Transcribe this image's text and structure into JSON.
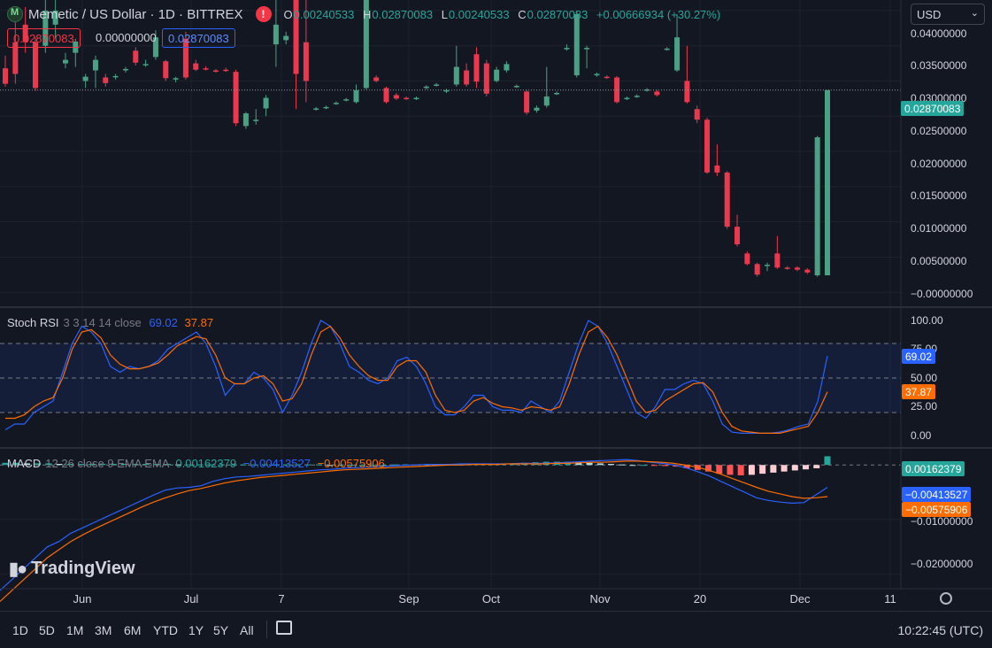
{
  "header": {
    "symbol": "Memetic / US Dollar · 1D · BITTREX",
    "alert_glyph": "!",
    "ohlc": [
      {
        "key": "O",
        "value": "0.00240533"
      },
      {
        "key": "H",
        "value": "0.02870083"
      },
      {
        "key": "L",
        "value": "0.00240533"
      },
      {
        "key": "C",
        "value": "0.02870083"
      }
    ],
    "change": "+0.00666934 (+30.27%)",
    "sell_price": "0.02870083",
    "spread": "0.00000000",
    "buy_price": "0.02870083",
    "currency": "USD"
  },
  "colors": {
    "up": "#26a69a",
    "up_candle": "#4aa082",
    "down": "#f23645",
    "down_candle": "#e8394f",
    "k_line": "#2962ff",
    "d_line": "#ff6d00",
    "macd_line": "#2962ff",
    "signal_line": "#ff6d00"
  },
  "price_axis": {
    "labels": [
      "0.04000000",
      "0.03500000",
      "0.03000000",
      "0.02500000",
      "0.02000000",
      "0.01500000",
      "0.01000000",
      "0.00500000",
      "−0.00000000"
    ],
    "last_price": "0.02870083"
  },
  "stoch": {
    "name": "Stoch RSI",
    "params": "3 3 14 14 close",
    "k_value": "69.02",
    "d_value": "37.87",
    "labels": [
      "100.00",
      "75.00",
      "50.00",
      "25.00",
      "0.00"
    ]
  },
  "macd": {
    "name": "MACD",
    "params": "12 26 close 9 EMA EMA",
    "hist_value": "0.00162379",
    "macd_value": "−0.00413527",
    "signal_value": "−0.00575906",
    "labels": [
      "−0.01000000",
      "−0.02000000"
    ]
  },
  "time_axis": {
    "labels": [
      "Jun",
      "Jul",
      "7",
      "Sep",
      "Oct",
      "Nov",
      "20",
      "Dec",
      "11"
    ]
  },
  "ranges": [
    "1D",
    "5D",
    "1M",
    "3M",
    "6M",
    "YTD",
    "1Y",
    "5Y",
    "All"
  ],
  "clock": "10:22:45 (UTC)",
  "brand": "TradingView",
  "chart_data": [
    {
      "type": "candlestick",
      "title": "Memetic / US Dollar · 1D · BITTREX",
      "ylim": [
        -0.002,
        0.0415
      ],
      "candles": [
        {
          "o": 0.0318,
          "c": 0.0296,
          "h": 0.0336,
          "l": 0.0292
        },
        {
          "o": 0.0355,
          "c": 0.031,
          "h": 0.039,
          "l": 0.0296
        },
        {
          "o": 0.038,
          "c": 0.0355,
          "h": 0.0405,
          "l": 0.034
        },
        {
          "o": 0.0355,
          "c": 0.029,
          "h": 0.0362,
          "l": 0.0286
        },
        {
          "o": 0.035,
          "c": 0.04,
          "h": 0.0415,
          "l": 0.034
        },
        {
          "o": 0.038,
          "c": 0.04,
          "h": 0.0415,
          "l": 0.036
        },
        {
          "o": 0.0325,
          "c": 0.033,
          "h": 0.034,
          "l": 0.0318
        },
        {
          "o": 0.034,
          "c": 0.0356,
          "h": 0.036,
          "l": 0.032
        },
        {
          "o": 0.03,
          "c": 0.0306,
          "h": 0.031,
          "l": 0.029
        },
        {
          "o": 0.0315,
          "c": 0.033,
          "h": 0.0336,
          "l": 0.029
        },
        {
          "o": 0.0305,
          "c": 0.0297,
          "h": 0.031,
          "l": 0.0292
        },
        {
          "o": 0.0306,
          "c": 0.0307,
          "h": 0.031,
          "l": 0.0302
        },
        {
          "o": 0.0315,
          "c": 0.0317,
          "h": 0.032,
          "l": 0.0312
        },
        {
          "o": 0.0343,
          "c": 0.0326,
          "h": 0.0348,
          "l": 0.0322
        },
        {
          "o": 0.0323,
          "c": 0.0324,
          "h": 0.033,
          "l": 0.032
        },
        {
          "o": 0.0334,
          "c": 0.0362,
          "h": 0.0372,
          "l": 0.033
        },
        {
          "o": 0.0328,
          "c": 0.0304,
          "h": 0.033,
          "l": 0.03
        },
        {
          "o": 0.0302,
          "c": 0.0304,
          "h": 0.0306,
          "l": 0.0298
        },
        {
          "o": 0.036,
          "c": 0.0305,
          "h": 0.037,
          "l": 0.0302
        },
        {
          "o": 0.0325,
          "c": 0.0316,
          "h": 0.033,
          "l": 0.0314
        },
        {
          "o": 0.0318,
          "c": 0.0317,
          "h": 0.0321,
          "l": 0.0315
        },
        {
          "o": 0.0315,
          "c": 0.0314,
          "h": 0.0317,
          "l": 0.0312
        },
        {
          "o": 0.0316,
          "c": 0.0315,
          "h": 0.0319,
          "l": 0.0313
        },
        {
          "o": 0.0313,
          "c": 0.024,
          "h": 0.0316,
          "l": 0.0236
        },
        {
          "o": 0.0236,
          "c": 0.0254,
          "h": 0.0256,
          "l": 0.0232
        },
        {
          "o": 0.0243,
          "c": 0.0245,
          "h": 0.026,
          "l": 0.0238
        },
        {
          "o": 0.0261,
          "c": 0.0276,
          "h": 0.028,
          "l": 0.025
        },
        {
          "o": 0.0352,
          "c": 0.038,
          "h": 0.042,
          "l": 0.032
        },
        {
          "o": 0.0358,
          "c": 0.0364,
          "h": 0.037,
          "l": 0.0352
        },
        {
          "o": 0.042,
          "c": 0.031,
          "h": 0.042,
          "l": 0.026
        },
        {
          "o": 0.0355,
          "c": 0.03,
          "h": 0.042,
          "l": 0.027
        },
        {
          "o": 0.026,
          "c": 0.0261,
          "h": 0.0263,
          "l": 0.0258
        },
        {
          "o": 0.0262,
          "c": 0.0263,
          "h": 0.0265,
          "l": 0.026
        },
        {
          "o": 0.0268,
          "c": 0.0269,
          "h": 0.0271,
          "l": 0.0266
        },
        {
          "o": 0.0273,
          "c": 0.0274,
          "h": 0.0276,
          "l": 0.0271
        },
        {
          "o": 0.027,
          "c": 0.0287,
          "h": 0.0295,
          "l": 0.0268
        },
        {
          "o": 0.029,
          "c": 0.042,
          "h": 0.042,
          "l": 0.0288
        },
        {
          "o": 0.0305,
          "c": 0.03,
          "h": 0.0308,
          "l": 0.0298
        },
        {
          "o": 0.029,
          "c": 0.027,
          "h": 0.0292,
          "l": 0.0268
        },
        {
          "o": 0.028,
          "c": 0.0275,
          "h": 0.0283,
          "l": 0.0273
        },
        {
          "o": 0.0276,
          "c": 0.0275,
          "h": 0.0278,
          "l": 0.0273
        },
        {
          "o": 0.0275,
          "c": 0.0276,
          "h": 0.0278,
          "l": 0.0273
        },
        {
          "o": 0.029,
          "c": 0.0292,
          "h": 0.0294,
          "l": 0.0288
        },
        {
          "o": 0.0294,
          "c": 0.0295,
          "h": 0.0297,
          "l": 0.0292
        },
        {
          "o": 0.0285,
          "c": 0.0287,
          "h": 0.0289,
          "l": 0.0283
        },
        {
          "o": 0.0295,
          "c": 0.032,
          "h": 0.035,
          "l": 0.0292
        },
        {
          "o": 0.0315,
          "c": 0.0295,
          "h": 0.0325,
          "l": 0.0292
        },
        {
          "o": 0.0338,
          "c": 0.0299,
          "h": 0.0348,
          "l": 0.029
        },
        {
          "o": 0.0325,
          "c": 0.0282,
          "h": 0.033,
          "l": 0.0278
        },
        {
          "o": 0.03,
          "c": 0.0316,
          "h": 0.032,
          "l": 0.0298
        },
        {
          "o": 0.0315,
          "c": 0.0324,
          "h": 0.0328,
          "l": 0.0312
        },
        {
          "o": 0.0292,
          "c": 0.0293,
          "h": 0.0295,
          "l": 0.029
        },
        {
          "o": 0.0285,
          "c": 0.0255,
          "h": 0.0287,
          "l": 0.0252
        },
        {
          "o": 0.0258,
          "c": 0.0262,
          "h": 0.0265,
          "l": 0.0255
        },
        {
          "o": 0.0265,
          "c": 0.0278,
          "h": 0.032,
          "l": 0.0262
        },
        {
          "o": 0.0282,
          "c": 0.0283,
          "h": 0.0285,
          "l": 0.028
        },
        {
          "o": 0.0345,
          "c": 0.0347,
          "h": 0.0352,
          "l": 0.0343
        },
        {
          "o": 0.0308,
          "c": 0.0395,
          "h": 0.04,
          "l": 0.0305
        },
        {
          "o": 0.0345,
          "c": 0.0347,
          "h": 0.035,
          "l": 0.0318
        },
        {
          "o": 0.0308,
          "c": 0.031,
          "h": 0.0312,
          "l": 0.0306
        },
        {
          "o": 0.0306,
          "c": 0.0305,
          "h": 0.0308,
          "l": 0.0303
        },
        {
          "o": 0.0305,
          "c": 0.027,
          "h": 0.0307,
          "l": 0.0268
        },
        {
          "o": 0.0275,
          "c": 0.0276,
          "h": 0.0278,
          "l": 0.0273
        },
        {
          "o": 0.0278,
          "c": 0.0279,
          "h": 0.0281,
          "l": 0.0276
        },
        {
          "o": 0.0287,
          "c": 0.0288,
          "h": 0.029,
          "l": 0.0285
        },
        {
          "o": 0.0285,
          "c": 0.028,
          "h": 0.0287,
          "l": 0.0278
        },
        {
          "o": 0.0345,
          "c": 0.0346,
          "h": 0.0348,
          "l": 0.0343
        },
        {
          "o": 0.0315,
          "c": 0.0362,
          "h": 0.0395,
          "l": 0.0313
        },
        {
          "o": 0.03,
          "c": 0.027,
          "h": 0.035,
          "l": 0.0268
        },
        {
          "o": 0.026,
          "c": 0.0245,
          "h": 0.0265,
          "l": 0.024
        },
        {
          "o": 0.0245,
          "c": 0.017,
          "h": 0.0248,
          "l": 0.0168
        },
        {
          "o": 0.018,
          "c": 0.017,
          "h": 0.021,
          "l": 0.0165
        },
        {
          "o": 0.017,
          "c": 0.0093,
          "h": 0.0172,
          "l": 0.009
        },
        {
          "o": 0.0093,
          "c": 0.0068,
          "h": 0.011,
          "l": 0.0065
        },
        {
          "o": 0.0055,
          "c": 0.004,
          "h": 0.0058,
          "l": 0.0038
        },
        {
          "o": 0.004,
          "c": 0.0025,
          "h": 0.0042,
          "l": 0.0022
        },
        {
          "o": 0.0038,
          "c": 0.0039,
          "h": 0.0042,
          "l": 0.003
        },
        {
          "o": 0.0055,
          "c": 0.0035,
          "h": 0.008,
          "l": 0.0033
        },
        {
          "o": 0.0035,
          "c": 0.0034,
          "h": 0.0037,
          "l": 0.0032
        },
        {
          "o": 0.0035,
          "c": 0.0032,
          "h": 0.0037,
          "l": 0.003
        },
        {
          "o": 0.0032,
          "c": 0.0028,
          "h": 0.0034,
          "l": 0.0026
        },
        {
          "o": 0.0024,
          "c": 0.022,
          "h": 0.0222,
          "l": 0.0022
        },
        {
          "o": 0.0024,
          "c": 0.0287,
          "h": 0.0287,
          "l": 0.0024
        }
      ]
    },
    {
      "type": "line",
      "title": "Stoch RSI 3 3 14 14 close",
      "ylim": [
        0,
        100
      ],
      "bands": [
        80,
        50,
        20
      ],
      "series": [
        {
          "name": "K",
          "values": [
            5,
            10,
            10,
            20,
            25,
            30,
            55,
            80,
            95,
            90,
            80,
            60,
            55,
            60,
            58,
            60,
            65,
            75,
            80,
            85,
            90,
            80,
            60,
            35,
            45,
            45,
            55,
            50,
            40,
            20,
            35,
            55,
            80,
            100,
            95,
            80,
            60,
            55,
            48,
            45,
            50,
            65,
            68,
            60,
            45,
            25,
            18,
            18,
            25,
            35,
            35,
            25,
            22,
            22,
            20,
            30,
            25,
            20,
            30,
            55,
            80,
            100,
            95,
            80,
            60,
            40,
            20,
            15,
            25,
            40,
            40,
            45,
            48,
            45,
            30,
            10,
            3,
            2,
            2,
            2,
            2,
            3,
            5,
            8,
            10,
            30,
            69
          ]
        },
        {
          "name": "D",
          "values": [
            15,
            15,
            18,
            25,
            30,
            33,
            50,
            75,
            90,
            92,
            85,
            70,
            62,
            58,
            58,
            60,
            63,
            70,
            78,
            82,
            86,
            84,
            70,
            50,
            45,
            45,
            50,
            52,
            45,
            30,
            32,
            45,
            70,
            90,
            95,
            85,
            70,
            60,
            52,
            48,
            48,
            60,
            65,
            65,
            55,
            35,
            22,
            20,
            22,
            30,
            33,
            28,
            25,
            24,
            22,
            25,
            24,
            22,
            25,
            45,
            70,
            90,
            95,
            85,
            70,
            50,
            30,
            20,
            22,
            30,
            35,
            40,
            45,
            46,
            38,
            20,
            8,
            4,
            3,
            2,
            2,
            2,
            4,
            6,
            8,
            20,
            38
          ]
        }
      ]
    },
    {
      "type": "line",
      "title": "MACD 12 26 close 9 EMA EMA",
      "ylim": [
        -0.0225,
        0.0028
      ],
      "series": [
        {
          "name": "MACD",
          "values": [
            -0.023,
            -0.021,
            -0.019,
            -0.017,
            -0.015,
            -0.014,
            -0.0125,
            -0.0115,
            -0.0105,
            -0.0095,
            -0.0085,
            -0.0075,
            -0.0065,
            -0.0055,
            -0.0046,
            -0.0042,
            -0.0041,
            -0.0038,
            -0.003,
            -0.0025,
            -0.0022,
            -0.0021,
            -0.0019,
            -0.0017,
            -0.0015,
            -0.0013,
            -0.0011,
            -0.0009,
            -0.0008,
            -0.0006,
            -0.0005,
            -0.0004,
            -0.0003,
            -0.0002,
            -0.0001,
            0.0,
            0.0001,
            0.0001,
            0.0001,
            0.0002,
            0.0002,
            0.0002,
            0.0002,
            0.0002,
            0.0003,
            0.0003,
            0.0003,
            0.0004,
            0.0005,
            0.0006,
            0.0007,
            0.0008,
            0.0009,
            0.001,
            0.0008,
            0.0005,
            0.0003,
            0.0,
            -0.0005,
            -0.0012,
            -0.002,
            -0.003,
            -0.004,
            -0.005,
            -0.006,
            -0.0065,
            -0.0068,
            -0.007,
            -0.0069,
            -0.0055,
            -0.0041
          ]
        },
        {
          "name": "Signal",
          "values": [
            -0.025,
            -0.023,
            -0.021,
            -0.019,
            -0.017,
            -0.0155,
            -0.014,
            -0.0128,
            -0.0117,
            -0.0107,
            -0.0097,
            -0.0087,
            -0.0077,
            -0.0068,
            -0.006,
            -0.0053,
            -0.0047,
            -0.0043,
            -0.0038,
            -0.0033,
            -0.0029,
            -0.0026,
            -0.0023,
            -0.0021,
            -0.0019,
            -0.0017,
            -0.0015,
            -0.0013,
            -0.0011,
            -0.0009,
            -0.0008,
            -0.0007,
            -0.0006,
            -0.0005,
            -0.0004,
            -0.0003,
            -0.0002,
            -0.0001,
            0.0,
            0.0,
            0.0001,
            0.0001,
            0.0001,
            0.0002,
            0.0002,
            0.0002,
            0.0002,
            0.0003,
            0.0003,
            0.0004,
            0.0005,
            0.0005,
            0.0006,
            0.0007,
            0.0007,
            0.0006,
            0.0005,
            0.0003,
            0.0,
            -0.0004,
            -0.001,
            -0.0017,
            -0.0025,
            -0.0033,
            -0.0041,
            -0.0048,
            -0.0053,
            -0.0058,
            -0.0061,
            -0.006,
            -0.0058
          ]
        }
      ],
      "histogram": [
        0.0004,
        0.0004,
        0.0003,
        0.0003,
        0.0003,
        0.0002,
        0.0002,
        0.0002,
        0.0002,
        0.0002,
        0.0002,
        0.0002,
        0.0002,
        0.0002,
        0.0002,
        0.0002,
        0.0001,
        0.0001,
        0.0001,
        0.0001,
        0.0001,
        0.0001,
        0.0001,
        0.0001,
        0.0001,
        0.0001,
        0.0001,
        0.0001,
        0.0001,
        0.0001,
        0.0,
        0.0,
        0.0,
        0.0,
        0.0,
        0.0,
        0.0001,
        0.0001,
        0.0001,
        0.0001,
        0.0001,
        0.0001,
        0.0001,
        0.0002,
        0.0002,
        0.0002,
        0.0002,
        0.0003,
        0.0004,
        0.0005,
        0.0006,
        0.0006,
        0.0006,
        0.0005,
        0.0004,
        0.0003,
        0.0002,
        0.0001,
        0.0,
        0.0,
        -0.0001,
        -0.0002,
        -0.0003,
        -0.0006,
        -0.0009,
        -0.0012,
        -0.0016,
        -0.0018,
        -0.0019,
        -0.0018,
        -0.0016,
        -0.0014,
        -0.0012,
        -0.001,
        -0.0008,
        -0.0006,
        0.0016
      ]
    }
  ]
}
